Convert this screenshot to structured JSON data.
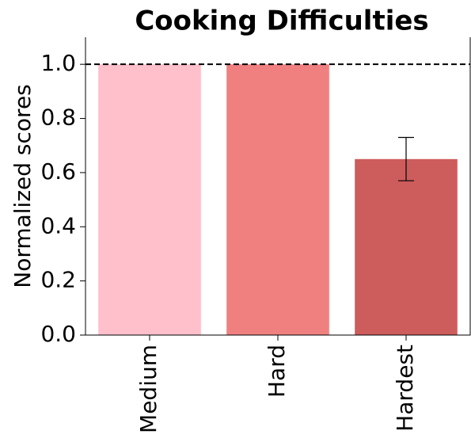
{
  "chart_data": {
    "type": "bar",
    "title": "Cooking Difficulties",
    "ylabel": "Normalized scores",
    "categories": [
      "Medium",
      "Hard",
      "Hardest"
    ],
    "values": [
      1.0,
      1.0,
      0.65
    ],
    "errors": [
      null,
      null,
      0.08
    ],
    "colors": [
      "#ffc0cb",
      "#f08080",
      "#cd5c5c"
    ],
    "reference_line": 1.0,
    "ylim": [
      0,
      1.1
    ],
    "yticks": [
      {
        "value": 0,
        "label": "0.0"
      },
      {
        "value": 0.2,
        "label": "0.2"
      },
      {
        "value": 0.4,
        "label": "0.4"
      },
      {
        "value": 0.6,
        "label": "0.6"
      },
      {
        "value": 0.8,
        "label": "0.8"
      },
      {
        "value": 1,
        "label": "1.0"
      }
    ],
    "grid": false
  }
}
